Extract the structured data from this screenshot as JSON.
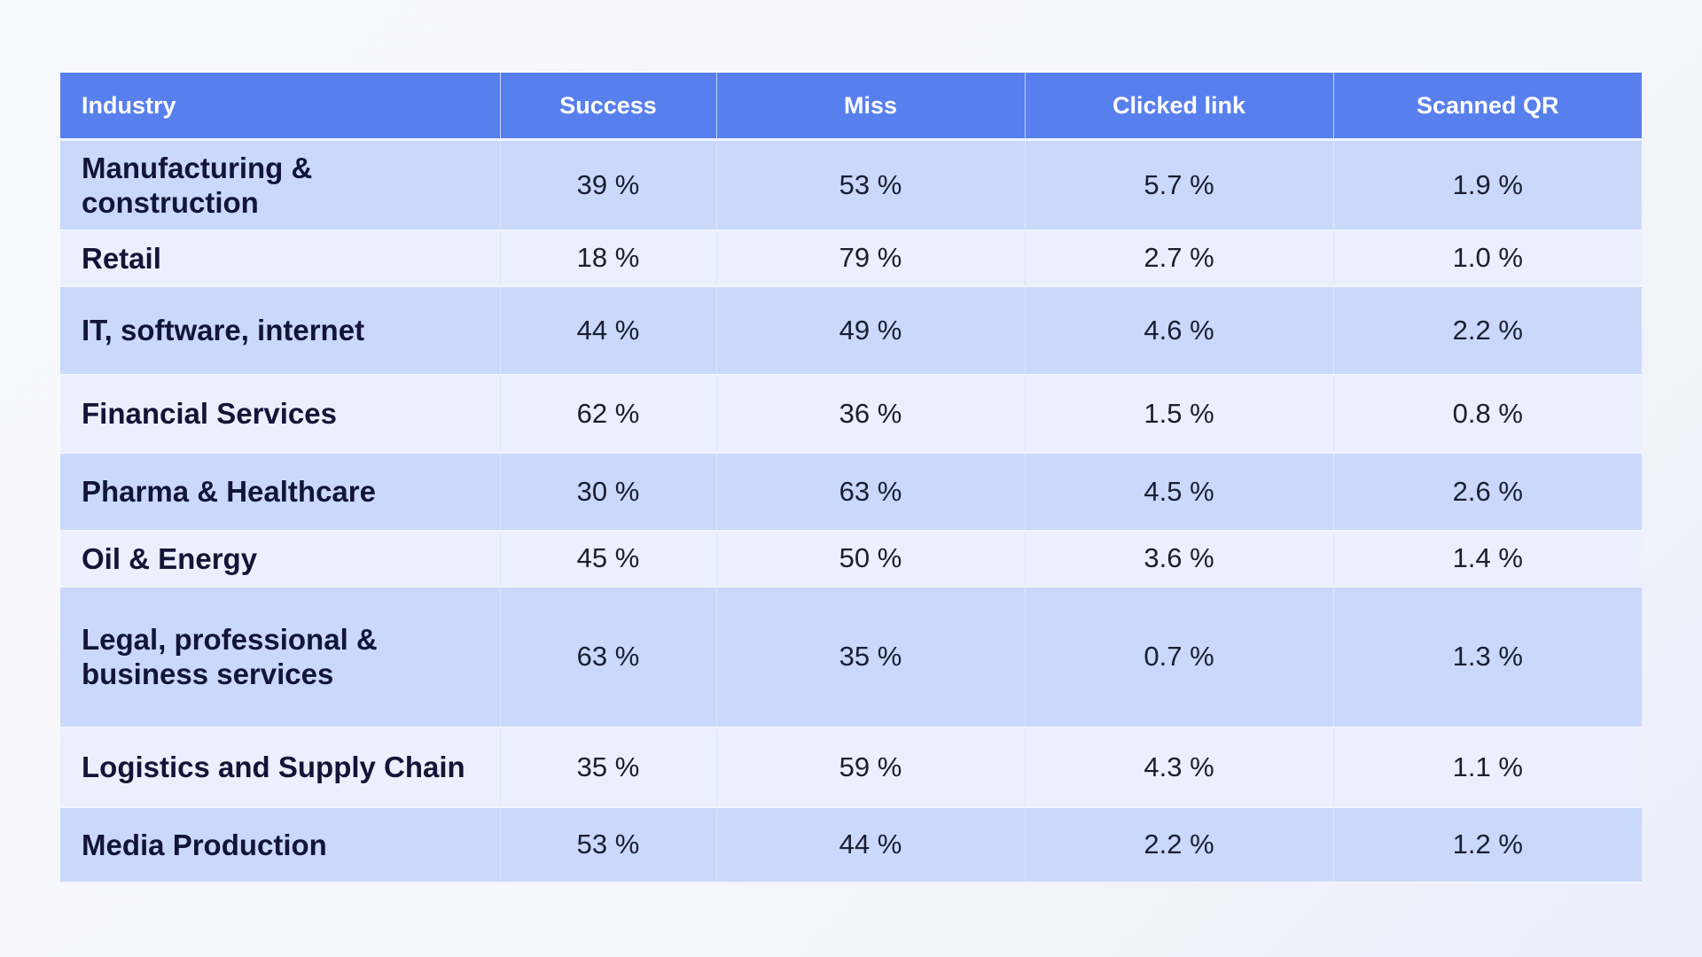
{
  "table": {
    "columns": [
      "Industry",
      "Success",
      "Miss",
      "Clicked link",
      "Scanned QR"
    ],
    "rows": [
      {
        "industry": "Manufacturing & construction",
        "success": "39 %",
        "miss": "53 %",
        "clicked": "5.7 %",
        "scanned": "1.9 %"
      },
      {
        "industry": "Retail",
        "success": "18 %",
        "miss": "79 %",
        "clicked": "2.7 %",
        "scanned": "1.0 %"
      },
      {
        "industry": "IT, software, internet",
        "success": "44 %",
        "miss": "49 %",
        "clicked": "4.6 %",
        "scanned": "2.2 %"
      },
      {
        "industry": "Financial Services",
        "success": "62 %",
        "miss": "36 %",
        "clicked": "1.5 %",
        "scanned": "0.8 %"
      },
      {
        "industry": "Pharma & Healthcare",
        "success": "30 %",
        "miss": "63 %",
        "clicked": "4.5 %",
        "scanned": "2.6 %"
      },
      {
        "industry": "Oil & Energy",
        "success": "45 %",
        "miss": "50 %",
        "clicked": "3.6 %",
        "scanned": "1.4 %"
      },
      {
        "industry": "Legal, professional & business services",
        "success": "63 %",
        "miss": "35 %",
        "clicked": "0.7 %",
        "scanned": "1.3 %"
      },
      {
        "industry": "Logistics and Supply Chain",
        "success": "35 %",
        "miss": "59 %",
        "clicked": "4.3 %",
        "scanned": "1.1 %"
      },
      {
        "industry": "Media Production",
        "success": "53 %",
        "miss": "44 %",
        "clicked": "2.2 %",
        "scanned": "1.2 %"
      }
    ]
  },
  "colors": {
    "header": "#587fee",
    "row_dark": "#cad9fb",
    "row_light": "#ebf0fe",
    "text": "#1b1e33"
  }
}
